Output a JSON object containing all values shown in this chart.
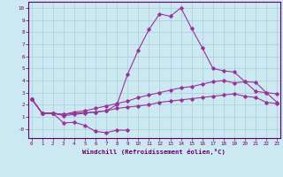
{
  "xlabel": "Windchill (Refroidissement éolien,°C)",
  "x": [
    0,
    1,
    2,
    3,
    4,
    5,
    6,
    7,
    8,
    9,
    10,
    11,
    12,
    13,
    14,
    15,
    16,
    17,
    18,
    19,
    20,
    21,
    22,
    23
  ],
  "line_peak": [
    2.5,
    1.3,
    1.3,
    1.2,
    1.3,
    1.35,
    1.4,
    1.5,
    2.0,
    4.5,
    6.5,
    8.2,
    9.5,
    9.3,
    10.0,
    8.3,
    6.7,
    5.0,
    4.8,
    4.7,
    3.9,
    3.1,
    3.0,
    2.2
  ],
  "line_upper": [
    2.5,
    1.3,
    1.3,
    1.2,
    1.4,
    1.5,
    1.7,
    1.9,
    2.1,
    2.3,
    2.6,
    2.8,
    3.0,
    3.2,
    3.4,
    3.5,
    3.7,
    3.9,
    4.0,
    3.8,
    3.9,
    3.85,
    3.0,
    2.9
  ],
  "line_mid": [
    2.5,
    1.3,
    1.3,
    1.1,
    1.2,
    1.3,
    1.4,
    1.5,
    1.7,
    1.8,
    1.9,
    2.0,
    2.2,
    2.3,
    2.4,
    2.5,
    2.6,
    2.7,
    2.8,
    2.9,
    2.7,
    2.6,
    2.2,
    2.1
  ],
  "line_dip_x": [
    0,
    1,
    2,
    3,
    4,
    5,
    6,
    7,
    8,
    9
  ],
  "line_dip_y": [
    2.5,
    1.3,
    1.3,
    0.5,
    0.55,
    0.3,
    -0.2,
    -0.3,
    -0.1,
    -0.1
  ],
  "ylim": [
    -0.75,
    10.5
  ],
  "xlim": [
    -0.3,
    23.3
  ],
  "yticks": [
    0,
    1,
    2,
    3,
    4,
    5,
    6,
    7,
    8,
    9,
    10
  ],
  "ytick_labels": [
    "-0",
    "1",
    "2",
    "3",
    "4",
    "5",
    "6",
    "7",
    "8",
    "9",
    "10"
  ],
  "xticks": [
    0,
    1,
    2,
    3,
    4,
    5,
    6,
    7,
    8,
    9,
    10,
    11,
    12,
    13,
    14,
    15,
    16,
    17,
    18,
    19,
    20,
    21,
    22,
    23
  ],
  "line_color": "#993399",
  "bg_color": "#cce8f0",
  "grid_color": "#aaccdd",
  "axis_color": "#660066",
  "tick_color": "#660066",
  "tick_fontsize": 4.2,
  "xlabel_fontsize": 5.2
}
